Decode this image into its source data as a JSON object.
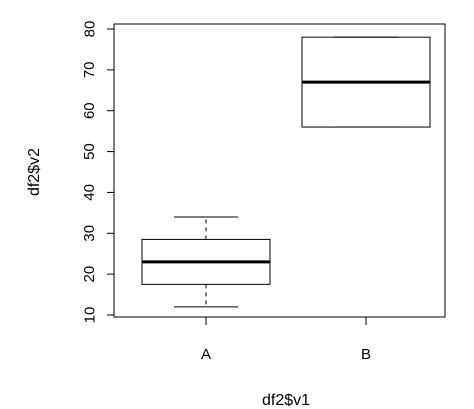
{
  "chart_data": {
    "type": "boxplot",
    "title": "",
    "xlabel": "df2$v1",
    "ylabel": "df2$v2",
    "categories": [
      "A",
      "B"
    ],
    "boxes": [
      {
        "category": "A",
        "whisker_low": 12,
        "q1": 17.5,
        "median": 23,
        "q3": 28.5,
        "whisker_high": 34
      },
      {
        "category": "B",
        "whisker_low": 56,
        "q1": 56,
        "median": 67,
        "q3": 78,
        "whisker_high": 78
      }
    ],
    "ylim": [
      10,
      80
    ],
    "yticks": [
      10,
      20,
      30,
      40,
      50,
      60,
      70,
      80
    ],
    "grid": false,
    "legend": "none"
  }
}
